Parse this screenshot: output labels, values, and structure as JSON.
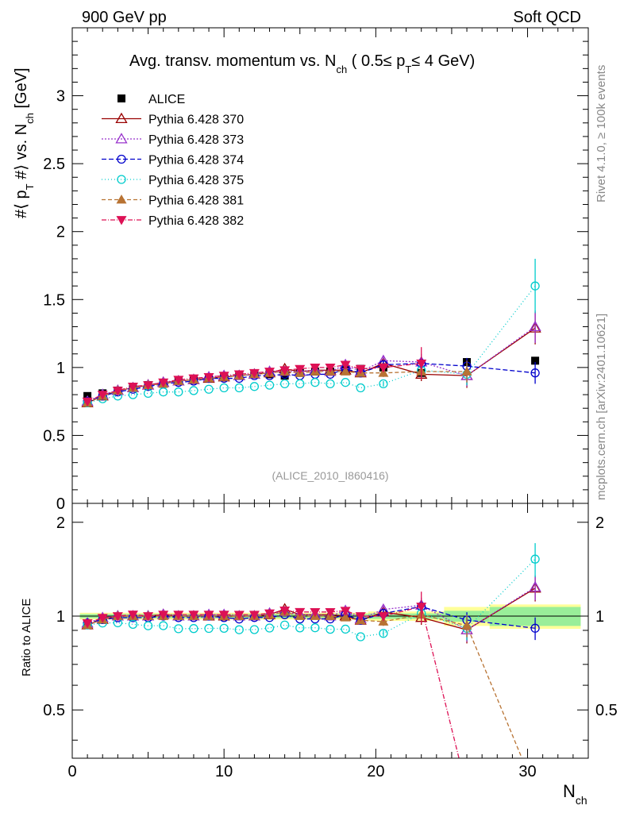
{
  "header": {
    "left": "900 GeV pp",
    "right": "Soft QCD",
    "side_top": "Rivet 4.1.0, ≥ 100k events",
    "side_bottom": "mcplots.cern.ch [arXiv:2401.10621]",
    "analysis_id": "(ALICE_2010_I860416)"
  },
  "chart_data": {
    "type": "line",
    "title": "Avg. transv. momentum vs. N_ch ( 0.5≤ p_T≤ 4 GeV)",
    "title_parts": {
      "a": "Avg. transv. momentum vs. N",
      "b": "ch",
      "c": " ( 0.5≤ p",
      "d": "T",
      "e": "≤ 4 GeV)"
    },
    "ylabel_parts": {
      "a": "#⟨ p",
      "b": "T",
      "c": " #⟩ vs. N",
      "d": "ch",
      "e": " [GeV]"
    },
    "xlabel_parts": {
      "a": "N",
      "b": "ch"
    },
    "ratio_ylabel": "Ratio to ALICE",
    "xlim": [
      0,
      34
    ],
    "ylim": [
      0,
      3.5
    ],
    "ratio_ylim": [
      0.35,
      2.3
    ],
    "x_ticks": [
      0,
      10,
      20,
      30
    ],
    "y_ticks": [
      0,
      0.5,
      1,
      1.5,
      2,
      2.5,
      3
    ],
    "ratio_ticks": [
      0.5,
      1,
      2
    ],
    "x": [
      1,
      2,
      3,
      4,
      5,
      6,
      7,
      8,
      9,
      10,
      11,
      12,
      13,
      14,
      15,
      16,
      17,
      18,
      19,
      20.5,
      23,
      26,
      30.5
    ],
    "alice": [
      0.79,
      0.81,
      0.83,
      0.85,
      0.87,
      0.88,
      0.9,
      0.91,
      0.92,
      0.93,
      0.94,
      0.95,
      0.95,
      0.94,
      0.96,
      0.97,
      0.97,
      0.98,
      0.99,
      1.0,
      0.96,
      1.04,
      1.05
    ],
    "alice_ratio_band": [
      {
        "x0": 0.5,
        "x1": 19.5,
        "inner": 0.015,
        "outer": 0.025
      },
      {
        "x0": 19.5,
        "x1": 24.5,
        "inner": 0.02,
        "outer": 0.035
      },
      {
        "x0": 24.5,
        "x1": 27.5,
        "inner": 0.04,
        "outer": 0.07
      },
      {
        "x0": 27.5,
        "x1": 33.5,
        "inner": 0.07,
        "outer": 0.09
      }
    ],
    "series": [
      {
        "name": "Pythia 6.428 370",
        "color": "#990000",
        "marker": "triangle-open",
        "dash": "",
        "values": [
          0.74,
          0.79,
          0.83,
          0.85,
          0.87,
          0.89,
          0.9,
          0.91,
          0.92,
          0.93,
          0.94,
          0.95,
          0.96,
          0.99,
          0.97,
          0.98,
          0.98,
          0.98,
          0.96,
          1.03,
          0.95,
          0.94,
          1.29
        ],
        "errors": [
          0,
          0,
          0,
          0,
          0,
          0,
          0,
          0,
          0,
          0,
          0,
          0,
          0,
          0,
          0,
          0,
          0,
          0,
          0,
          0.03,
          0.05,
          0.09,
          0.12
        ]
      },
      {
        "name": "Pythia 6.428 373",
        "color": "#9933cc",
        "marker": "triangle-open",
        "dash": "2,2",
        "values": [
          0.75,
          0.8,
          0.83,
          0.85,
          0.87,
          0.89,
          0.9,
          0.91,
          0.93,
          0.94,
          0.94,
          0.95,
          0.97,
          0.97,
          0.97,
          0.98,
          0.97,
          1.02,
          0.97,
          1.05,
          1.04,
          0.94,
          1.3
        ],
        "errors": [
          0,
          0,
          0,
          0,
          0,
          0,
          0,
          0,
          0,
          0,
          0,
          0,
          0,
          0,
          0,
          0,
          0,
          0,
          0,
          0.03,
          0.06,
          0.08,
          0.12
        ]
      },
      {
        "name": "Pythia 6.428 374",
        "color": "#0000cc",
        "marker": "circle-open",
        "dash": "6,3",
        "values": [
          0.75,
          0.79,
          0.82,
          0.84,
          0.86,
          0.88,
          0.89,
          0.9,
          0.92,
          0.92,
          0.92,
          0.94,
          0.94,
          0.95,
          0.94,
          0.95,
          0.95,
          0.99,
          0.96,
          1.02,
          1.03,
          1.01,
          0.96
        ],
        "errors": [
          0,
          0,
          0,
          0,
          0,
          0,
          0,
          0,
          0,
          0,
          0,
          0,
          0,
          0,
          0,
          0,
          0,
          0,
          0,
          0.03,
          0.05,
          0.06,
          0.08
        ]
      },
      {
        "name": "Pythia 6.428 375",
        "color": "#00cccc",
        "marker": "circle-open",
        "dash": "1,3",
        "values": [
          0.74,
          0.77,
          0.79,
          0.8,
          0.81,
          0.82,
          0.82,
          0.83,
          0.84,
          0.85,
          0.85,
          0.86,
          0.87,
          0.88,
          0.88,
          0.89,
          0.88,
          0.89,
          0.85,
          0.88,
          0.98,
          0.95,
          1.6
        ],
        "errors": [
          0,
          0,
          0,
          0,
          0,
          0,
          0,
          0,
          0,
          0,
          0,
          0,
          0,
          0,
          0,
          0,
          0,
          0,
          0,
          0.02,
          0.05,
          0.08,
          0.2
        ]
      },
      {
        "name": "Pythia 6.428 381",
        "color": "#b87333",
        "marker": "triangle-filled",
        "dash": "5,3",
        "values": [
          0.74,
          0.79,
          0.83,
          0.85,
          0.87,
          0.88,
          0.9,
          0.91,
          0.92,
          0.93,
          0.94,
          0.95,
          0.96,
          0.97,
          0.96,
          0.97,
          0.97,
          0.97,
          0.96,
          0.96,
          0.97,
          0.97,
          0.0
        ],
        "errors": [
          0,
          0,
          0,
          0,
          0,
          0,
          0,
          0,
          0,
          0,
          0,
          0,
          0,
          0,
          0,
          0,
          0,
          0,
          0,
          0.03,
          0.05,
          0.08,
          0
        ]
      },
      {
        "name": "Pythia 6.428 382",
        "color": "#dd1155",
        "marker": "triangle-down-filled",
        "dash": "6,2,1,2",
        "values": [
          0.75,
          0.8,
          0.83,
          0.86,
          0.87,
          0.89,
          0.91,
          0.92,
          0.93,
          0.94,
          0.95,
          0.96,
          0.97,
          0.98,
          0.99,
          1.0,
          1.0,
          1.02,
          0.99,
          1.0,
          1.03,
          0.0,
          0.0
        ],
        "errors": [
          0,
          0,
          0,
          0,
          0,
          0,
          0,
          0,
          0,
          0,
          0,
          0,
          0,
          0,
          0,
          0,
          0,
          0,
          0,
          0.03,
          0.12,
          0,
          0
        ]
      }
    ]
  }
}
